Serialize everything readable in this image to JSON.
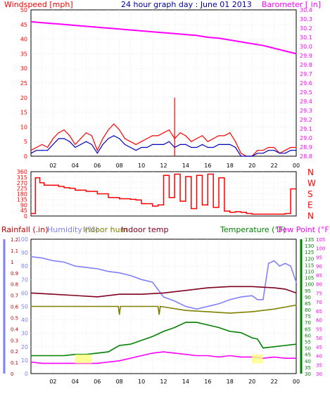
{
  "chart_data": [
    {
      "type": "line",
      "title": "24 hour graph day : June 01 2013",
      "left_axis_label": "Windspeed [mph]",
      "right_axis_label": "Barometer [ in]",
      "x_tick_labels": [
        "02",
        "04",
        "06",
        "08",
        "10",
        "12",
        "14",
        "16",
        "18",
        "20",
        "22",
        "00"
      ],
      "left_ticks": [
        0,
        5,
        10,
        15,
        20,
        25,
        30,
        35,
        40,
        45,
        50
      ],
      "right_ticks": [
        28.8,
        28.9,
        29,
        29.1,
        29.2,
        29.3,
        29.4,
        29.5,
        29.6,
        29.7,
        29.8,
        29.9,
        30,
        30.1,
        30.2,
        30.3,
        30.4
      ],
      "ylim_left": [
        0,
        50
      ],
      "ylim_right": [
        28.8,
        30.4
      ],
      "grid": true,
      "series": [
        {
          "name": "Windspeed",
          "axis": "left",
          "color": "#ff0000",
          "x": [
            0,
            0.5,
            1,
            1.5,
            2,
            2.5,
            3,
            3.5,
            4,
            4.5,
            5,
            5.5,
            6,
            6.5,
            7,
            7.5,
            8,
            8.5,
            9,
            9.5,
            10,
            10.5,
            11,
            11.5,
            12,
            12.5,
            13,
            13.5,
            14,
            14.5,
            15,
            15.5,
            16,
            16.5,
            17,
            17.5,
            18,
            18.5,
            19,
            19.5,
            20,
            20.5,
            21,
            21.5,
            22,
            22.5,
            23,
            23.5,
            24
          ],
          "values": [
            2,
            3,
            4,
            3,
            6,
            8,
            9,
            7,
            4,
            6,
            8,
            7,
            2,
            6,
            9,
            11,
            9,
            6,
            5,
            4,
            5,
            6,
            7,
            7,
            8,
            9,
            6,
            8,
            7,
            5,
            6,
            7,
            5,
            6,
            7,
            7,
            8,
            5,
            1,
            0,
            0,
            2,
            2,
            3,
            3,
            1,
            2,
            3,
            3
          ]
        },
        {
          "name": "Wind gust peak",
          "axis": "left",
          "color": "#ff0000",
          "x": [
            13.0
          ],
          "values": [
            20
          ]
        },
        {
          "name": "Windspeed average",
          "axis": "left",
          "color": "#0000c0",
          "x": [
            0,
            0.5,
            1,
            1.5,
            2,
            2.5,
            3,
            3.5,
            4,
            4.5,
            5,
            5.5,
            6,
            6.5,
            7,
            7.5,
            8,
            8.5,
            9,
            9.5,
            10,
            10.5,
            11,
            11.5,
            12,
            12.5,
            13,
            13.5,
            14,
            14.5,
            15,
            15.5,
            16,
            16.5,
            17,
            17.5,
            18,
            18.5,
            19,
            19.5,
            20,
            20.5,
            21,
            21.5,
            22,
            22.5,
            23,
            23.5,
            24
          ],
          "values": [
            1,
            2,
            2,
            2,
            4,
            6,
            6,
            5,
            3,
            4,
            5,
            4,
            1,
            4,
            6,
            7,
            6,
            4,
            3,
            2,
            3,
            3,
            4,
            4,
            4,
            5,
            3,
            4,
            4,
            3,
            3,
            4,
            3,
            3,
            4,
            4,
            4,
            3,
            0,
            0,
            0,
            1,
            1,
            2,
            2,
            1,
            1,
            2,
            2
          ]
        },
        {
          "name": "Barometer",
          "axis": "right",
          "color": "#ff00ff",
          "x": [
            0,
            1,
            2,
            3,
            4,
            5,
            6,
            7,
            8,
            9,
            10,
            11,
            12,
            13,
            14,
            15,
            16,
            17,
            18,
            19,
            20,
            21,
            22,
            23,
            24
          ],
          "values": [
            30.27,
            30.26,
            30.25,
            30.24,
            30.23,
            30.22,
            30.21,
            30.2,
            30.19,
            30.18,
            30.17,
            30.16,
            30.15,
            30.14,
            30.13,
            30.12,
            30.1,
            30.09,
            30.07,
            30.05,
            30.03,
            30.01,
            29.98,
            29.95,
            29.92
          ]
        }
      ]
    },
    {
      "type": "line",
      "right_labels": [
        "N",
        "W",
        "S",
        "E",
        "N"
      ],
      "left_ticks": [
        0,
        45,
        90,
        135,
        180,
        225,
        270,
        315,
        360
      ],
      "ylim": [
        0,
        360
      ],
      "grid": true,
      "series": [
        {
          "name": "Wind direction",
          "color": "#ff0000",
          "x": [
            0,
            0.3,
            0.4,
            0.8,
            1.2,
            2.5,
            3,
            3.5,
            4,
            5,
            6,
            7,
            8,
            9,
            9.5,
            10,
            11,
            11.5,
            12,
            12.5,
            13,
            13.5,
            14,
            14.5,
            15,
            15.5,
            16,
            16.5,
            17,
            17.5,
            18,
            18.5,
            19,
            19.5,
            20,
            21,
            22,
            23,
            23.5,
            24
          ],
          "values": [
            20,
            20,
            310,
            270,
            250,
            240,
            230,
            225,
            210,
            200,
            180,
            150,
            140,
            135,
            130,
            100,
            80,
            90,
            330,
            150,
            340,
            120,
            320,
            60,
            330,
            90,
            340,
            70,
            310,
            40,
            30,
            35,
            30,
            20,
            15,
            15,
            15,
            20,
            220,
            220
          ]
        }
      ]
    },
    {
      "type": "line",
      "labels": {
        "rainfall": "Rainfall (.in)",
        "humidity": "Humidity (%)",
        "indoor_hum": "Indoor hum",
        "indoor_temp": "Indoor temp",
        "temperature": "Temperature (°F)",
        "dew_point": "Dew Point (°F)"
      },
      "rain_ticks": [
        0,
        0.1,
        0.2,
        0.3,
        0.4,
        0.5,
        0.6,
        0.7,
        0.8,
        0.9,
        1,
        1.1,
        1.2
      ],
      "humidity_ticks": [
        0,
        10,
        20,
        30,
        40,
        50,
        60,
        70,
        80,
        90,
        100
      ],
      "temp_ticks": [
        30,
        35,
        40,
        45,
        50,
        55,
        60,
        65,
        70,
        75,
        80,
        85,
        90,
        95,
        100,
        105,
        110,
        115,
        120,
        125,
        130,
        135
      ],
      "dew_ticks": [
        30,
        35,
        40,
        45,
        50,
        55,
        60,
        65,
        70,
        75,
        80,
        85,
        90,
        95,
        100,
        105
      ],
      "ylim_humidity": [
        0,
        100
      ],
      "ylim_temperature": [
        30,
        135
      ],
      "grid": true,
      "series": [
        {
          "name": "Humidity",
          "axis": "humidity",
          "color": "#8080ff",
          "x": [
            0,
            1,
            2,
            3,
            4,
            5,
            6,
            7,
            8,
            9,
            10,
            11,
            12,
            13,
            14,
            15,
            16,
            17,
            18,
            19,
            20,
            20.5,
            21,
            21.5,
            22,
            22.5,
            23,
            23.5,
            24
          ],
          "values": [
            87,
            86,
            84,
            83,
            80,
            79,
            78,
            76,
            75,
            73,
            70,
            68,
            57,
            54,
            50,
            48,
            50,
            52,
            55,
            57,
            58,
            55,
            55,
            82,
            84,
            80,
            82,
            80,
            68
          ]
        },
        {
          "name": "Indoor hum",
          "axis": "humidity",
          "color": "#808000",
          "x": [
            0,
            2,
            4,
            6,
            7.9,
            8,
            8.1,
            10,
            11.5,
            11.6,
            11.7,
            14,
            16,
            18,
            20,
            22,
            24
          ],
          "values": [
            50,
            50,
            50,
            50,
            50,
            44,
            50,
            50,
            50,
            44,
            50,
            47,
            46,
            45,
            46,
            48,
            51
          ]
        },
        {
          "name": "Indoor temp",
          "axis": "temperature",
          "color": "#800020",
          "x": [
            0,
            2,
            4,
            6,
            8,
            10,
            12,
            14,
            16,
            18,
            20,
            22,
            23,
            24
          ],
          "values": [
            93,
            92,
            91,
            90,
            92,
            92,
            93,
            95,
            97,
            98,
            98,
            97,
            96,
            93
          ]
        },
        {
          "name": "Temperature",
          "axis": "temperature",
          "color": "#008000",
          "x": [
            0,
            1,
            2,
            3,
            4,
            5,
            6,
            7,
            8,
            9,
            10,
            11,
            12,
            13,
            14,
            15,
            16,
            17,
            18,
            19,
            20,
            20.5,
            21,
            22,
            23,
            24
          ],
          "values": [
            44,
            44,
            44,
            44,
            45,
            45,
            46,
            47,
            52,
            53,
            56,
            59,
            63,
            66,
            70,
            70,
            68,
            66,
            63,
            62,
            58,
            57,
            50,
            51,
            52,
            53
          ]
        },
        {
          "name": "Dew Point",
          "axis": "temperature",
          "color": "#ff00ff",
          "x": [
            0,
            1,
            2,
            3,
            4,
            5,
            6,
            7,
            8,
            9,
            10,
            11,
            12,
            13,
            14,
            15,
            16,
            17,
            18,
            19,
            20,
            21,
            22,
            23,
            24
          ],
          "values": [
            39,
            38,
            38,
            38,
            38,
            38,
            38,
            39,
            40,
            42,
            44,
            46,
            47,
            46,
            45,
            44,
            44,
            43,
            44,
            43,
            43,
            42,
            43,
            42,
            42
          ]
        },
        {
          "name": "Rainfall",
          "axis": "rain",
          "color": "#ffff80",
          "bands": [
            [
              4,
              5.5
            ],
            [
              20,
              21
            ]
          ],
          "values": [
            0.02,
            0.02
          ]
        }
      ]
    }
  ]
}
